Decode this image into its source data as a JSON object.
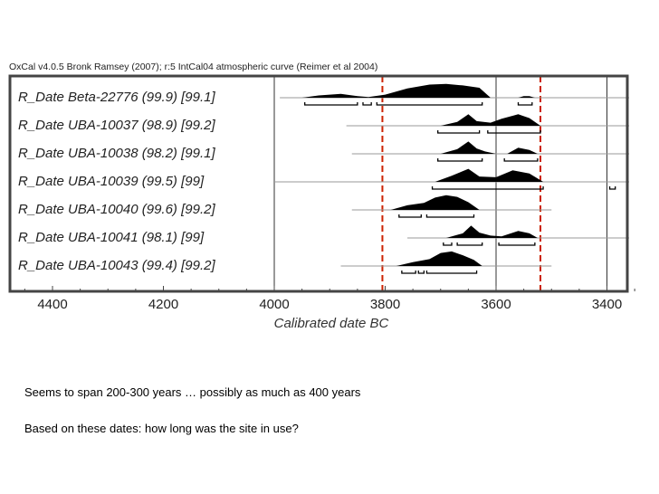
{
  "chart_header": "OxCal v4.0.5 Bronk Ramsey (2007); r:5 IntCal04 atmospheric curve (Reimer et al 2004)",
  "captions": [
    "Seems to span 200-300 years … possibly as much as 400 years",
    "Based on these dates: how long was the site in use?"
  ],
  "colors": {
    "frame": "#444444",
    "distribution": "#000000",
    "range_line": "#999999",
    "bracket": "#000000",
    "guide_dashed": "#cc2200",
    "gridline": "#333333"
  },
  "chart_data": {
    "type": "area",
    "title": "OxCal v4.0.5 Bronk Ramsey (2007); r:5 IntCal04 atmospheric curve (Reimer et al 2004)",
    "xlabel": "Calibrated date BC",
    "ylabel": "",
    "xlim": [
      4480,
      3310
    ],
    "x_reversed": true,
    "x_ticks": [
      4400,
      4200,
      4000,
      3800,
      3600,
      3400
    ],
    "grid_vertical_at": [
      4000,
      3600,
      3400
    ],
    "dashed_markers_at": [
      3805,
      3520
    ],
    "series": [
      {
        "name": "R_Date Beta-22776 (99.9) [99.1]",
        "label_prefix": "R_Date ",
        "label_rest": "Beta-22776 (99.9) [99.1]",
        "range": [
          3990,
          3360
        ],
        "density": [
          [
            3950,
            0
          ],
          [
            3920,
            0.15
          ],
          [
            3880,
            0.25
          ],
          [
            3850,
            0.1
          ],
          [
            3830,
            0.05
          ],
          [
            3800,
            0.2
          ],
          [
            3760,
            0.6
          ],
          [
            3720,
            0.85
          ],
          [
            3690,
            0.9
          ],
          [
            3660,
            0.8
          ],
          [
            3630,
            0.65
          ],
          [
            3610,
            0
          ],
          [
            3560,
            0
          ],
          [
            3550,
            0.1
          ],
          [
            3540,
            0.1
          ],
          [
            3530,
            0
          ]
        ],
        "brackets_95": [
          [
            3945,
            3850
          ],
          [
            3840,
            3825
          ],
          [
            3815,
            3625
          ],
          [
            3560,
            3535
          ]
        ]
      },
      {
        "name": "R_Date UBA-10037 (98.9) [99.2]",
        "label_prefix": "R_Date ",
        "label_rest": "UBA-10037 (98.9) [99.2]",
        "range": [
          3870,
          3360
        ],
        "density": [
          [
            3700,
            0
          ],
          [
            3670,
            0.25
          ],
          [
            3650,
            0.75
          ],
          [
            3635,
            0.3
          ],
          [
            3610,
            0.2
          ],
          [
            3590,
            0.45
          ],
          [
            3560,
            0.75
          ],
          [
            3540,
            0.5
          ],
          [
            3520,
            0
          ]
        ],
        "brackets_95": [
          [
            3705,
            3630
          ],
          [
            3615,
            3520
          ]
        ]
      },
      {
        "name": "R_Date UBA-10038 (98.2) [99.1]",
        "label_prefix": "R_Date ",
        "label_rest": "UBA-10038 (98.2) [99.1]",
        "range": [
          3860,
          3360
        ],
        "density": [
          [
            3700,
            0
          ],
          [
            3670,
            0.3
          ],
          [
            3650,
            0.8
          ],
          [
            3635,
            0.35
          ],
          [
            3620,
            0.15
          ],
          [
            3600,
            0
          ],
          [
            3580,
            0
          ],
          [
            3560,
            0.4
          ],
          [
            3540,
            0.25
          ],
          [
            3525,
            0
          ]
        ],
        "brackets_95": [
          [
            3705,
            3625
          ],
          [
            3585,
            3525
          ]
        ]
      },
      {
        "name": "R_Date UBA-10039 (99.5) [99]",
        "label_prefix": "R_Date ",
        "label_rest": "UBA-10039 (99.5) [99]",
        "range": [
          4000,
          3360
        ],
        "density": [
          [
            3710,
            0
          ],
          [
            3680,
            0.4
          ],
          [
            3650,
            0.85
          ],
          [
            3630,
            0.35
          ],
          [
            3600,
            0.3
          ],
          [
            3570,
            0.75
          ],
          [
            3540,
            0.55
          ],
          [
            3515,
            0
          ]
        ],
        "brackets_95": [
          [
            3715,
            3515
          ],
          [
            3395,
            3385
          ]
        ]
      },
      {
        "name": "R_Date UBA-10040 (99.6) [99.2]",
        "label_prefix": "R_Date ",
        "label_rest": "UBA-10040 (99.6) [99.2]",
        "range": [
          3860,
          3500
        ],
        "density": [
          [
            3790,
            0
          ],
          [
            3760,
            0.3
          ],
          [
            3730,
            0.45
          ],
          [
            3710,
            0.8
          ],
          [
            3690,
            0.95
          ],
          [
            3670,
            0.85
          ],
          [
            3650,
            0.5
          ],
          [
            3630,
            0
          ]
        ],
        "brackets_95": [
          [
            3775,
            3735
          ],
          [
            3725,
            3640
          ]
        ]
      },
      {
        "name": "R_Date UBA-10041 (98.1) [99]",
        "label_prefix": "R_Date ",
        "label_rest": "UBA-10041 (98.1) [99]",
        "range": [
          3760,
          3360
        ],
        "density": [
          [
            3690,
            0
          ],
          [
            3660,
            0.3
          ],
          [
            3645,
            0.8
          ],
          [
            3630,
            0.35
          ],
          [
            3610,
            0.15
          ],
          [
            3590,
            0.1
          ],
          [
            3560,
            0.45
          ],
          [
            3540,
            0.3
          ],
          [
            3525,
            0
          ]
        ],
        "brackets_95": [
          [
            3695,
            3680
          ],
          [
            3670,
            3625
          ],
          [
            3595,
            3530
          ]
        ]
      },
      {
        "name": "R_Date UBA-10043 (99.4) [99.2]",
        "label_prefix": "R_Date ",
        "label_rest": "UBA-10043 (99.4) [99.2]",
        "range": [
          3880,
          3500
        ],
        "density": [
          [
            3780,
            0
          ],
          [
            3750,
            0.25
          ],
          [
            3720,
            0.45
          ],
          [
            3700,
            0.85
          ],
          [
            3680,
            0.95
          ],
          [
            3660,
            0.7
          ],
          [
            3640,
            0.4
          ],
          [
            3625,
            0
          ]
        ],
        "brackets_95": [
          [
            3770,
            3745
          ],
          [
            3740,
            3730
          ],
          [
            3725,
            3635
          ]
        ]
      }
    ]
  }
}
